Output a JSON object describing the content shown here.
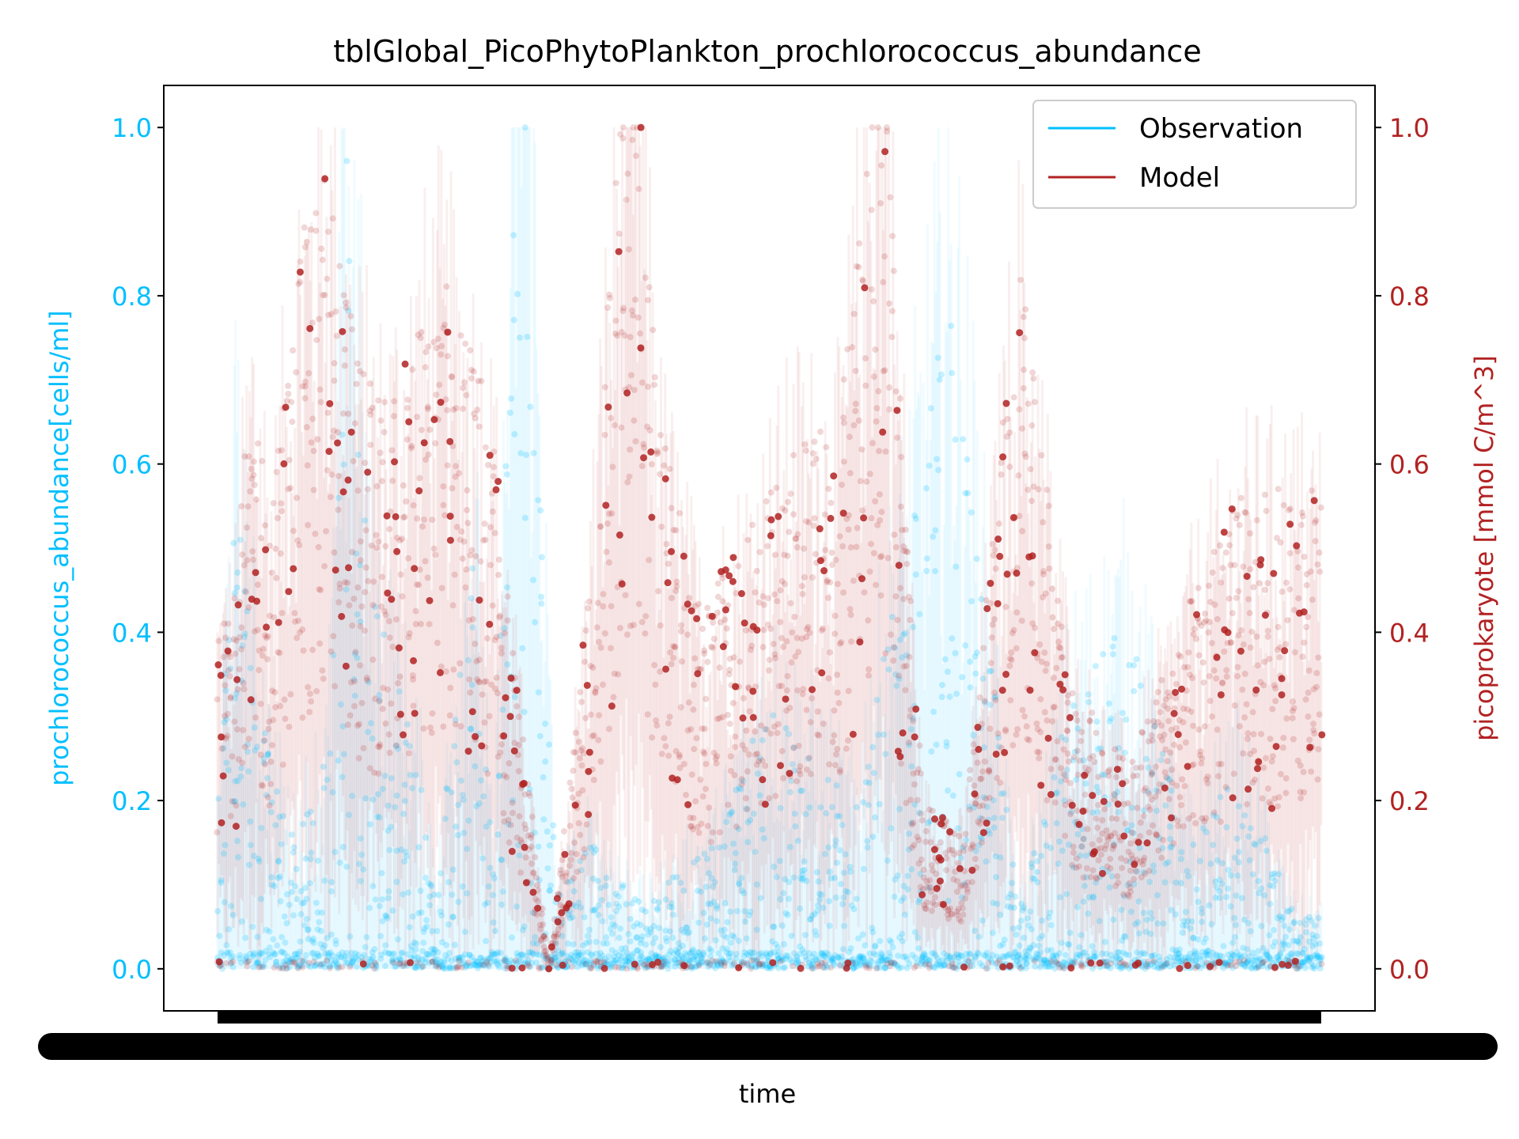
{
  "chart_data": {
    "type": "scatter",
    "title": "tblGlobal_PicoPhytoPlankton_prochlorococcus_abundance",
    "xlabel": "time",
    "ylabel_left": "prochlorococcus_abundance[cells/ml]",
    "ylabel_right": "picoprokaryote [mmol C/m^3]",
    "ylim_left": [
      -0.05,
      1.05
    ],
    "ylim_right": [
      -0.05,
      1.05
    ],
    "yticks_left": [
      "0.0",
      "0.2",
      "0.4",
      "0.6",
      "0.8",
      "1.0"
    ],
    "yticks_right": [
      "0.0",
      "0.2",
      "0.4",
      "0.6",
      "0.8",
      "1.0"
    ],
    "xticks_note": "dense overlapping tick labels (unreadable)",
    "grid": false,
    "legend_position": "top-right",
    "series": [
      {
        "name": "Observation",
        "color": "#00bfff",
        "axis": "left",
        "representative_points": [
          [
            0,
            0.15
          ],
          [
            12,
            0.45
          ],
          [
            25,
            0.3
          ],
          [
            40,
            0.18
          ],
          [
            55,
            0.12
          ],
          [
            80,
            0.2
          ],
          [
            95,
            0.78
          ],
          [
            110,
            0.35
          ],
          [
            140,
            0.22
          ],
          [
            160,
            0.09
          ],
          [
            185,
            0.41
          ],
          [
            200,
            0.08
          ],
          [
            220,
            1.0
          ],
          [
            245,
            0.07
          ],
          [
            270,
            0.12
          ],
          [
            310,
            0.06
          ],
          [
            360,
            0.12
          ],
          [
            400,
            0.25
          ],
          [
            430,
            0.2
          ],
          [
            460,
            0.15
          ],
          [
            500,
            0.4
          ],
          [
            530,
            0.64
          ],
          [
            580,
            0.05
          ],
          [
            620,
            0.26
          ],
          [
            660,
            0.32
          ],
          [
            700,
            0.12
          ],
          [
            740,
            0.18
          ],
          [
            780,
            0.05
          ]
        ]
      },
      {
        "name": "Model",
        "color": "#b22222",
        "axis": "right",
        "representative_points": [
          [
            0,
            0.31
          ],
          [
            12,
            0.33
          ],
          [
            25,
            0.55
          ],
          [
            40,
            0.41
          ],
          [
            60,
            0.65
          ],
          [
            80,
            0.72
          ],
          [
            100,
            0.55
          ],
          [
            120,
            0.5
          ],
          [
            160,
            0.62
          ],
          [
            185,
            0.55
          ],
          [
            200,
            0.47
          ],
          [
            215,
            0.28
          ],
          [
            240,
            0.0
          ],
          [
            265,
            0.29
          ],
          [
            300,
            0.9
          ],
          [
            320,
            0.48
          ],
          [
            350,
            0.32
          ],
          [
            380,
            0.38
          ],
          [
            420,
            0.48
          ],
          [
            450,
            0.47
          ],
          [
            480,
            0.87
          ],
          [
            510,
            0.15
          ],
          [
            540,
            0.12
          ],
          [
            580,
            0.63
          ],
          [
            620,
            0.25
          ],
          [
            660,
            0.18
          ],
          [
            700,
            0.32
          ],
          [
            740,
            0.42
          ]
        ]
      }
    ]
  }
}
